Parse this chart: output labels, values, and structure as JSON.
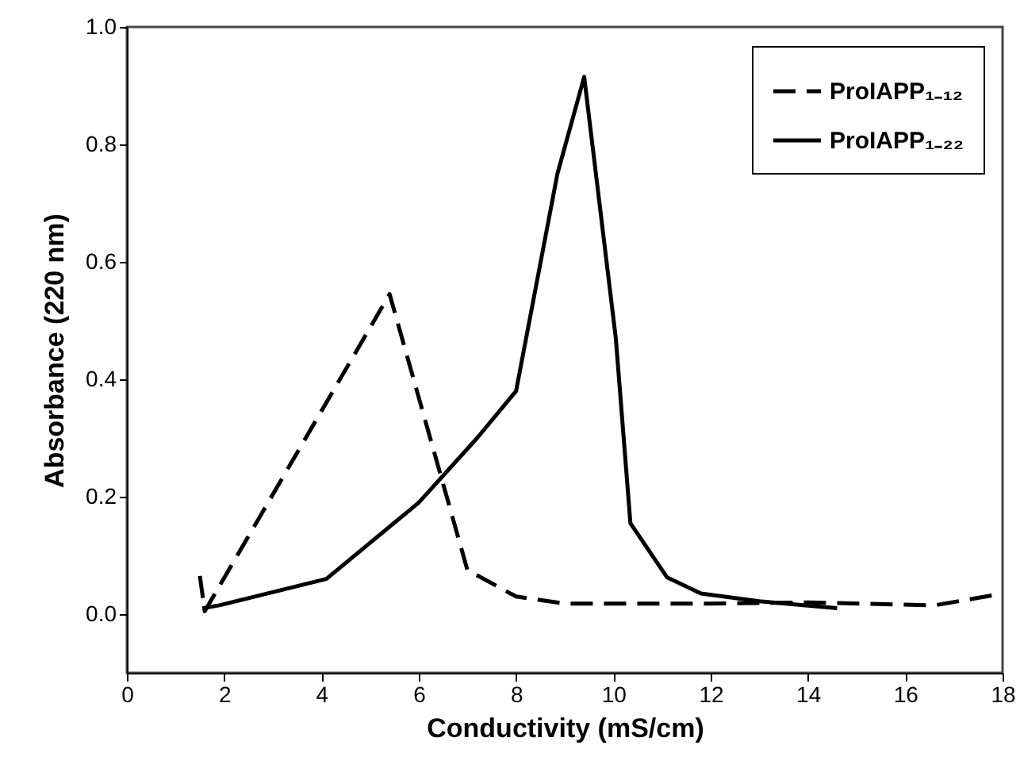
{
  "chart_data": {
    "type": "line",
    "xlabel": "Conductivity (mS/cm)",
    "ylabel": "Absorbance (220 nm)",
    "xlim": [
      0,
      18
    ],
    "xticks": [
      0,
      2,
      4,
      6,
      8,
      10,
      12,
      14,
      16,
      18
    ],
    "ylim": [
      -0.1,
      1.0
    ],
    "yticks": [
      {
        "value": 0,
        "label": "0.0"
      },
      0.2,
      0.4,
      0.6,
      0.8,
      {
        "value": 1,
        "label": "1.0"
      }
    ],
    "grid": false,
    "legend": "top right",
    "marker": "none",
    "series": [
      {
        "name": "ProIAPP₁₋₁₂",
        "color": "#000000",
        "line_style": "dashed",
        "x": [
          1.5,
          1.6,
          5.4,
          7.0,
          8.0,
          9.0,
          12.0,
          14.0,
          16.6,
          18.0
        ],
        "values": [
          0.065,
          0.005,
          0.545,
          0.075,
          0.03,
          0.018,
          0.018,
          0.02,
          0.015,
          0.035
        ]
      },
      {
        "name": "ProIAPP₁₋₂₂",
        "color": "#000000",
        "line_style": "solid",
        "x": [
          1.55,
          1.9,
          4.1,
          6.0,
          7.2,
          8.0,
          8.85,
          9.4,
          10.05,
          10.35,
          11.1,
          11.8,
          13.0,
          14.6
        ],
        "values": [
          0.01,
          0.015,
          0.06,
          0.19,
          0.3,
          0.38,
          0.75,
          0.915,
          0.47,
          0.155,
          0.063,
          0.035,
          0.022,
          0.01
        ]
      }
    ]
  }
}
